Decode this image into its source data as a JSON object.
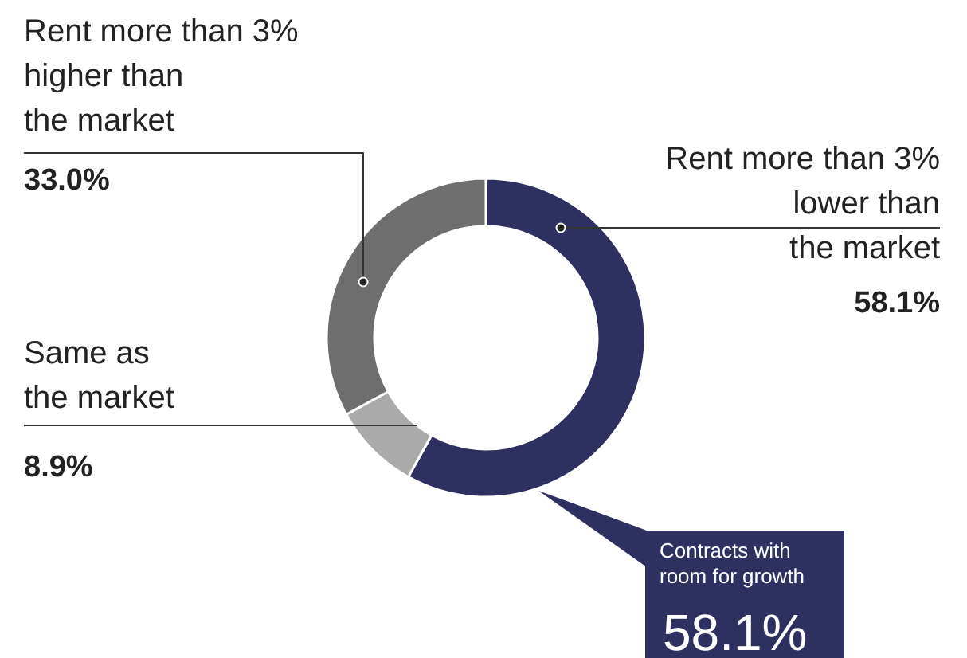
{
  "chart_data": {
    "type": "donut",
    "categories": [
      "Rent more than 3%\nlower than\nthe market",
      "Same as\nthe market",
      "Rent more than 3%\nhigher than\nthe market"
    ],
    "values": [
      58.1,
      8.9,
      33.0
    ],
    "colors": [
      "#2e3060",
      "#aaaaaa",
      "#6e6e6e"
    ],
    "value_labels": [
      "58.1%",
      "8.9%",
      "33.0%"
    ],
    "annotations": [
      "Contracts with\nroom for growth",
      "58.1%"
    ]
  }
}
